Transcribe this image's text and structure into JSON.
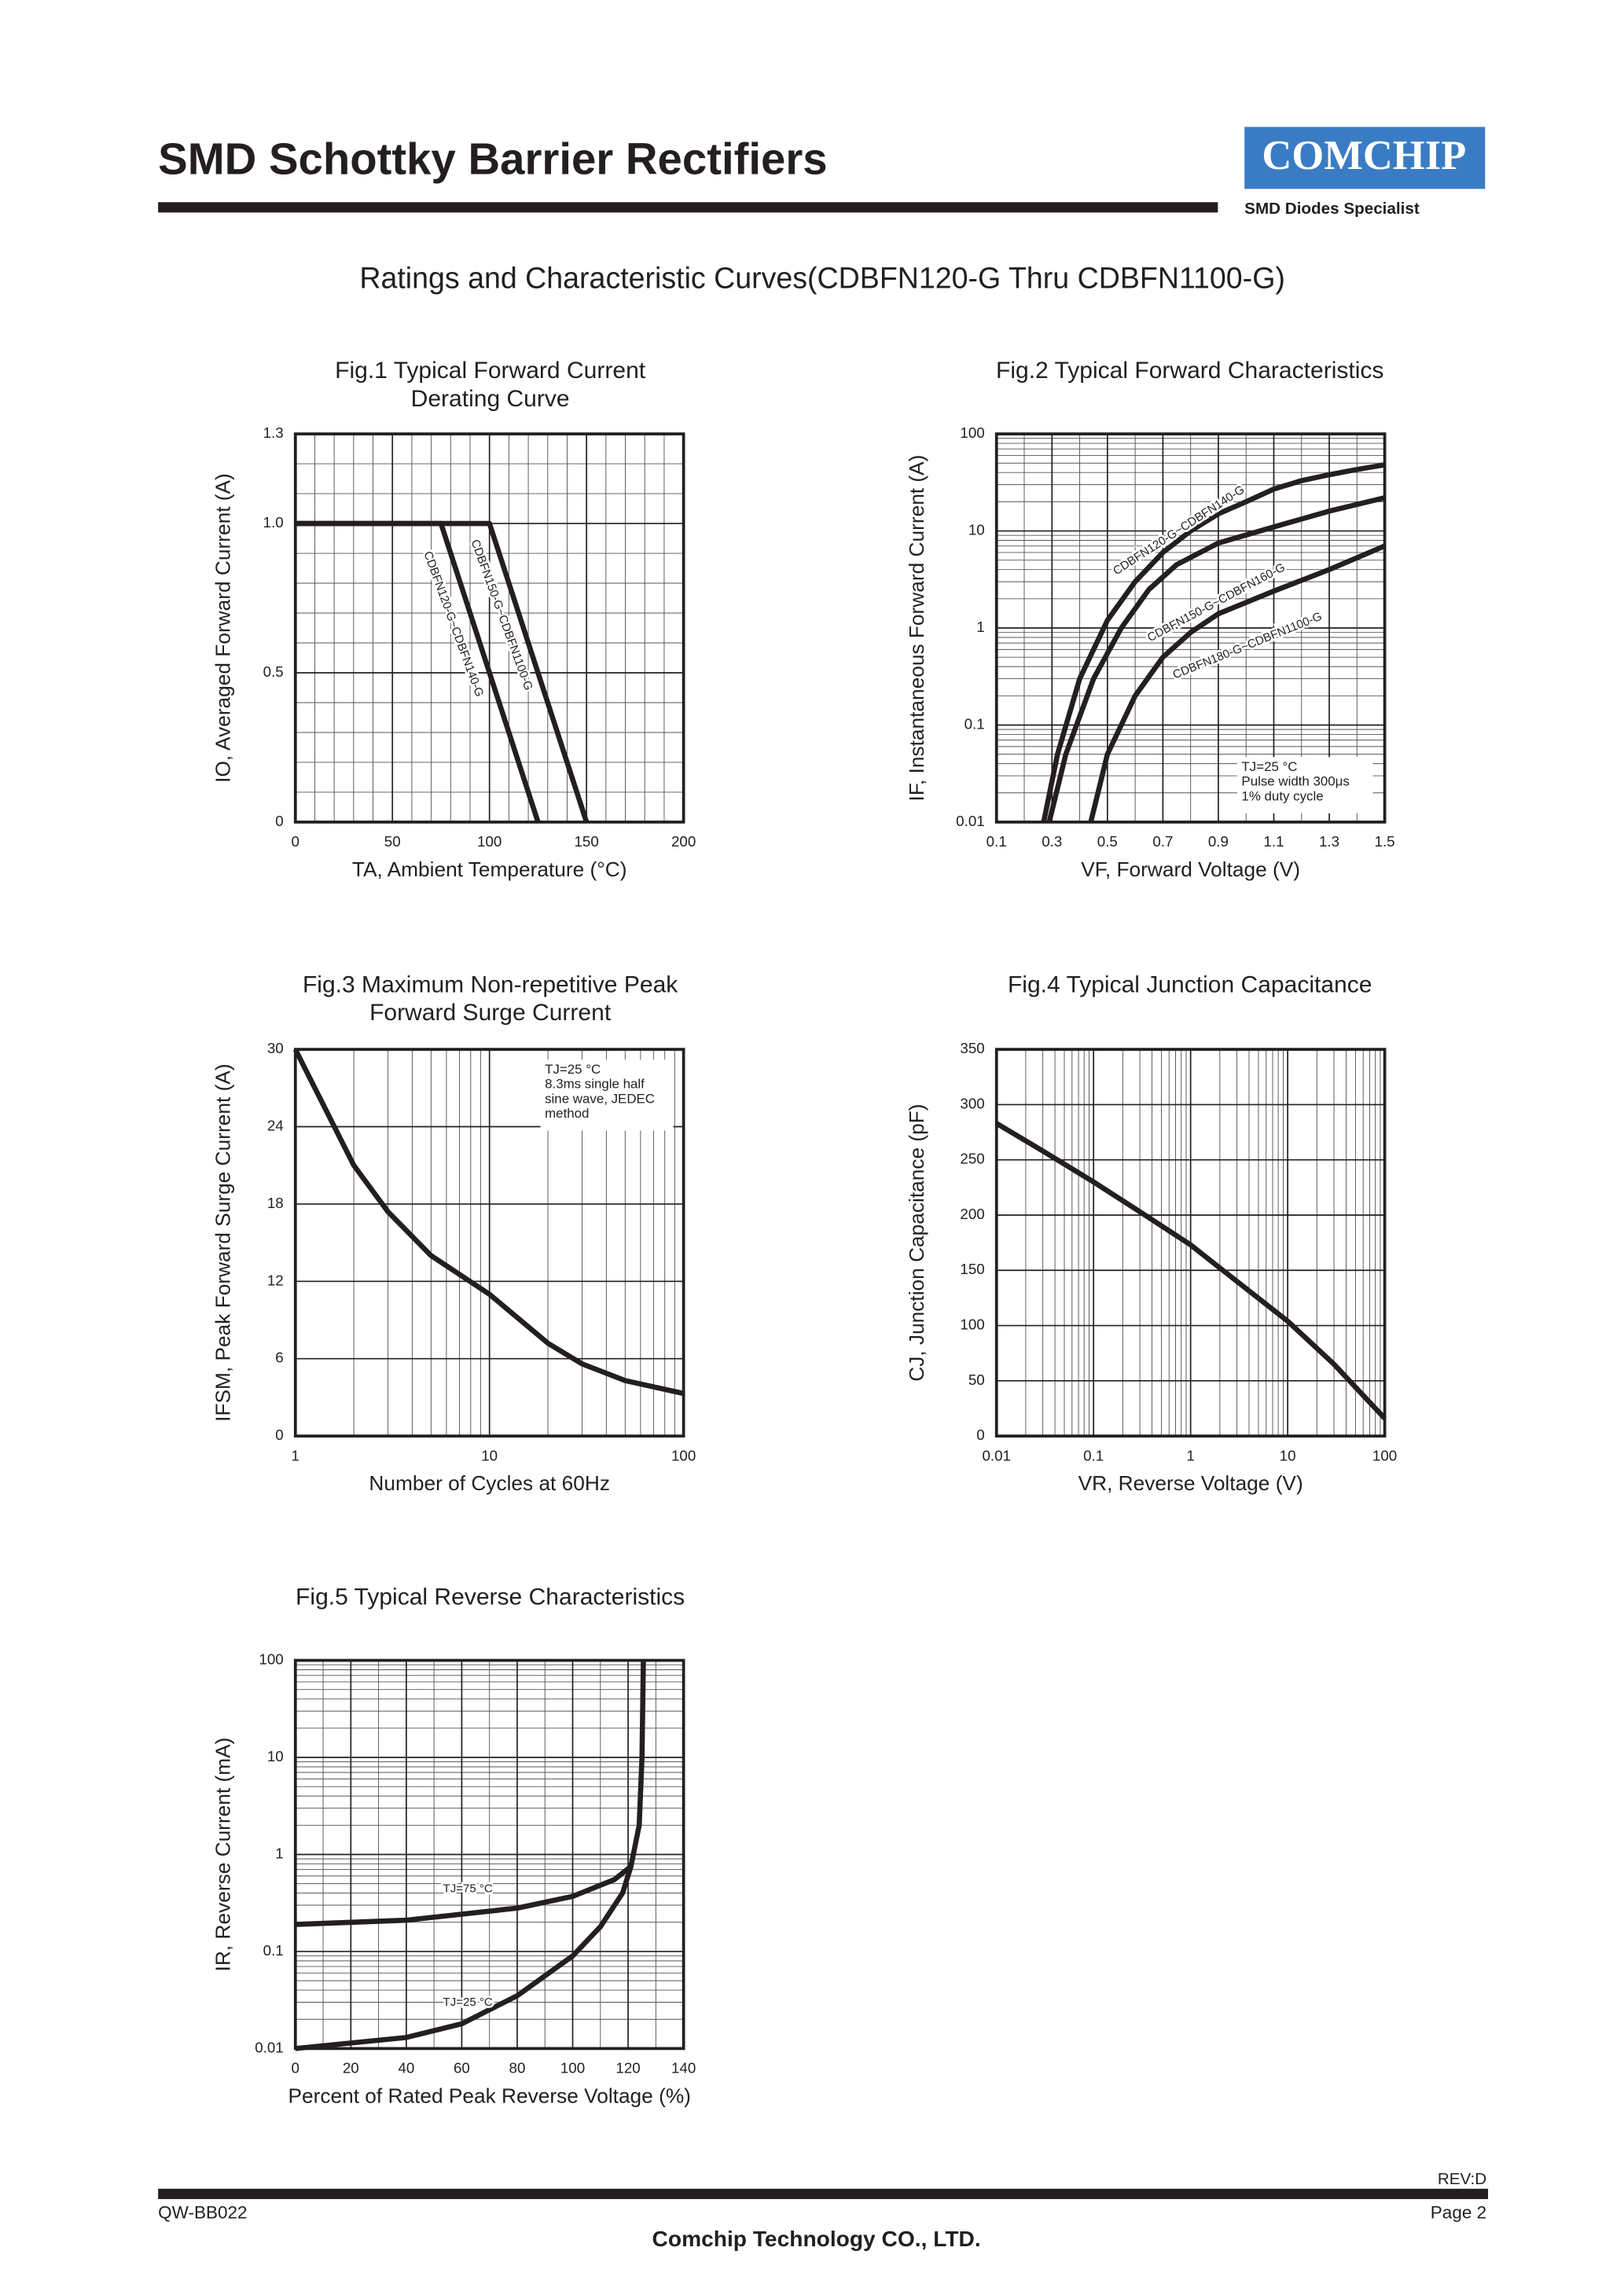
{
  "header": {
    "title": "SMD Schottky Barrier Rectifiers",
    "logo": "COMCHIP",
    "tagline": "SMD Diodes Specialist"
  },
  "subtitle": "Ratings and Characteristic Curves(CDBFN120-G Thru CDBFN1100-G)",
  "chart_data": [
    {
      "type": "line",
      "title": [
        "Fig.1 Typical Forward Current",
        "Derating Curve"
      ],
      "x_label": "TA, Ambient Temperature (°C)",
      "y_label": "IO, Averaged Forward Current (A)",
      "xlim": [
        0,
        200
      ],
      "xticks": [
        0,
        50,
        100,
        150,
        200
      ],
      "ylim": [
        0,
        1.3
      ],
      "yticks": [
        0,
        0.5,
        {
          "value": 1,
          "label": "1.0"
        },
        1.3
      ],
      "grid": true,
      "minor_grid": true,
      "series": [
        {
          "name": "CDBFN120-G~CDBFN140-G",
          "color": "#231f20",
          "x": [
            0,
            75,
            125
          ],
          "values": [
            1,
            1,
            0
          ]
        },
        {
          "name": "CDBFN150-G~CDBFN1100-G",
          "color": "#231f20",
          "x": [
            0,
            100,
            150
          ],
          "values": [
            1,
            1,
            0
          ]
        }
      ]
    },
    {
      "type": "line",
      "title": [
        "Fig.2 Typical Forward Characteristics"
      ],
      "x_label": "VF, Forward Voltage (V)",
      "y_label": "IF, Instantaneous Forward Current (A)",
      "xlim": [
        0.1,
        1.5
      ],
      "xticks": [
        0.1,
        0.3,
        0.5,
        0.7,
        0.9,
        1.1,
        1.3,
        1.5
      ],
      "ylim": [
        0.01,
        100
      ],
      "yscale": "log",
      "yticks": [
        0.01,
        0.1,
        1,
        10,
        100
      ],
      "grid": true,
      "minor_grid": true,
      "annotation": [
        "TJ=25 °C",
        "Pulse width 300μs",
        "1% duty cycle"
      ],
      "series": [
        {
          "name": "CDBFN120-G~CDBFN140-G",
          "color": "#231f20",
          "x": [
            0.27,
            0.32,
            0.4,
            0.5,
            0.6,
            0.7,
            0.8,
            0.9,
            1.0,
            1.1,
            1.2,
            1.3,
            1.4,
            1.5
          ],
          "values": [
            0.01,
            0.05,
            0.3,
            1.2,
            3,
            6,
            10,
            15,
            20,
            27,
            33,
            38,
            43,
            48
          ]
        },
        {
          "name": "CDBFN150-G~CDBFN160-G",
          "color": "#231f20",
          "x": [
            0.29,
            0.35,
            0.45,
            0.55,
            0.65,
            0.75,
            0.9,
            1.1,
            1.3,
            1.5
          ],
          "values": [
            0.01,
            0.05,
            0.3,
            1,
            2.5,
            4.5,
            7.5,
            11,
            16,
            22
          ]
        },
        {
          "name": "CDBFN180-G~CDBFN1100-G",
          "color": "#231f20",
          "x": [
            0.44,
            0.5,
            0.6,
            0.7,
            0.8,
            0.9,
            1.1,
            1.3,
            1.5
          ],
          "values": [
            0.01,
            0.05,
            0.2,
            0.5,
            0.9,
            1.4,
            2.4,
            4,
            7
          ]
        }
      ]
    },
    {
      "type": "line",
      "title": [
        "Fig.3 Maximum Non-repetitive Peak",
        "Forward Surge Current"
      ],
      "x_label": "Number of Cycles at 60Hz",
      "y_label": "IFSM, Peak Forward Surge Current (A)",
      "xlim": [
        1,
        100
      ],
      "xscale": "log",
      "xticks": [
        1,
        10,
        100
      ],
      "ylim": [
        0,
        30
      ],
      "yticks": [
        0,
        6,
        12,
        18,
        24,
        30
      ],
      "grid": true,
      "minor_grid": true,
      "annotation": [
        "TJ=25 °C",
        "8.3ms single half",
        "sine wave, JEDEC",
        "method"
      ],
      "series": [
        {
          "color": "#231f20",
          "x": [
            1,
            2,
            3,
            5,
            10,
            20,
            30,
            50,
            100
          ],
          "values": [
            30,
            21,
            17.4,
            14,
            11,
            7.2,
            5.6,
            4.3,
            3.3
          ]
        }
      ]
    },
    {
      "type": "line",
      "title": [
        "Fig.4 Typical Junction Capacitance"
      ],
      "x_label": "VR, Reverse Voltage (V)",
      "y_label": "CJ, Junction Capacitance (pF)",
      "xlim": [
        0.01,
        100
      ],
      "xscale": "log",
      "xticks": [
        0.01,
        0.1,
        1,
        10,
        100
      ],
      "ylim": [
        0,
        350
      ],
      "yticks": [
        0,
        50,
        100,
        150,
        200,
        250,
        300,
        350
      ],
      "grid": true,
      "minor_grid": true,
      "series": [
        {
          "color": "#231f20",
          "x": [
            0.01,
            0.03,
            0.1,
            0.3,
            1,
            3,
            10,
            30,
            100
          ],
          "values": [
            283,
            258,
            230,
            203,
            173,
            140,
            104,
            65,
            16
          ]
        }
      ]
    },
    {
      "type": "line",
      "title": [
        "Fig.5 Typical Reverse Characteristics"
      ],
      "x_label": "Percent of Rated Peak Reverse Voltage (%)",
      "y_label": "IR, Reverse Current (mA)",
      "xlim": [
        0,
        140
      ],
      "xticks": [
        0,
        20,
        40,
        60,
        80,
        100,
        120,
        140
      ],
      "ylim": [
        0.01,
        100
      ],
      "yscale": "log",
      "yticks": [
        0.01,
        0.1,
        1,
        10,
        100
      ],
      "grid": true,
      "minor_grid": true,
      "series": [
        {
          "name": "TJ=75 °C",
          "color": "#231f20",
          "x": [
            0,
            40,
            80,
            100,
            115,
            121,
            124,
            125,
            125.5
          ],
          "values": [
            0.19,
            0.21,
            0.28,
            0.37,
            0.55,
            0.75,
            2,
            10,
            100
          ]
        },
        {
          "name": "TJ=25 °C",
          "color": "#231f20",
          "x": [
            0,
            40,
            60,
            80,
            100,
            110,
            118,
            121
          ],
          "values": [
            0.01,
            0.013,
            0.018,
            0.035,
            0.09,
            0.18,
            0.4,
            0.75
          ]
        }
      ]
    }
  ],
  "footer": {
    "rev": "REV:D",
    "doc": "QW-BB022",
    "page": "Page 2",
    "company": "Comchip Technology CO., LTD."
  }
}
